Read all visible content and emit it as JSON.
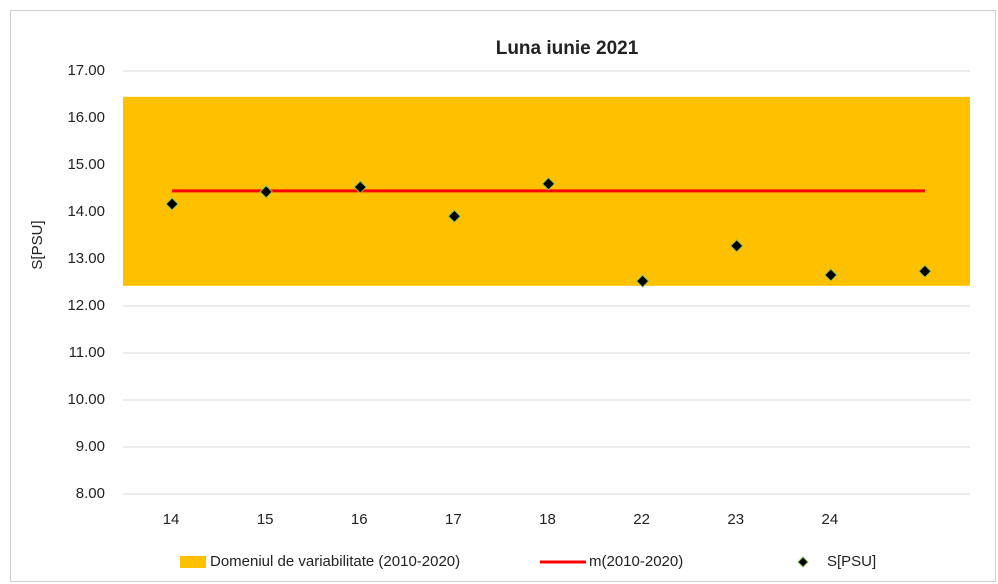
{
  "chart_data": {
    "type": "combo",
    "title": "Luna iunie 2021",
    "y_label": "S[PSU]",
    "categories": [
      "14",
      "15",
      "16",
      "17",
      "18",
      "22",
      "23",
      "24",
      null
    ],
    "ylim": [
      8,
      17
    ],
    "yticks": [
      {
        "value": 8,
        "label": "8.00"
      },
      {
        "value": 9,
        "label": "9.00"
      },
      {
        "value": 10,
        "label": "10.00"
      },
      {
        "value": 11,
        "label": "11.00"
      },
      {
        "value": 12,
        "label": "12.00"
      },
      {
        "value": 13,
        "label": "13.00"
      },
      {
        "value": 14,
        "label": "14.00"
      },
      {
        "value": 15,
        "label": "15.00"
      },
      {
        "value": 16,
        "label": "16.00"
      },
      {
        "value": 17,
        "label": "17.00"
      }
    ],
    "grid": true,
    "legend": "bottom",
    "series": [
      {
        "name": "Domeniul de variabilitate (2010-2020)",
        "type": "band",
        "color": "#ffc000",
        "range": [
          12.43,
          16.45
        ]
      },
      {
        "name": "m(2010-2020)",
        "type": "line",
        "color": "#ff0000",
        "values": [
          14.45,
          14.45,
          14.45,
          14.45,
          14.45,
          14.45,
          14.45,
          14.45,
          14.45
        ]
      },
      {
        "name": "S[PSU]",
        "type": "scatter",
        "color": "#000000",
        "values": [
          14.17,
          14.43,
          14.53,
          13.91,
          14.6,
          12.53,
          13.28,
          12.66,
          12.74
        ]
      }
    ]
  }
}
